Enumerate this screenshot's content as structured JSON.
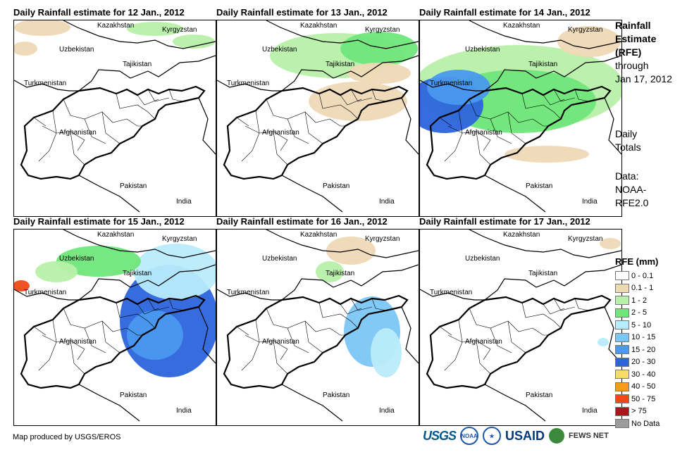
{
  "panels": [
    {
      "title": "Daily Rainfall estimate for 12 Jan., 2012",
      "day": 12
    },
    {
      "title": "Daily Rainfall estimate for 13 Jan., 2012",
      "day": 13
    },
    {
      "title": "Daily Rainfall estimate for 14 Jan., 2012",
      "day": 14
    },
    {
      "title": "Daily Rainfall estimate for 15 Jan., 2012",
      "day": 15
    },
    {
      "title": "Daily Rainfall estimate for 16 Jan., 2012",
      "day": 16
    },
    {
      "title": "Daily Rainfall estimate for 17 Jan., 2012",
      "day": 17
    }
  ],
  "map_labels": {
    "kazakhstan": "Kazakhstan",
    "kyrgyzstan": "Kyrgyzstan",
    "uzbekistan": "Uzbekistan",
    "tajikistan": "Tajikistan",
    "turkmenistan": "Turkmenistan",
    "afghanistan": "Afghanistan",
    "pakistan": "Pakistan",
    "india": "India"
  },
  "side_text": {
    "title_line1": "Rainfall",
    "title_line2": "Estimate",
    "title_line3": "(RFE)",
    "through": "through",
    "date": "Jan 17, 2012",
    "daily": "Daily",
    "totals": "Totals",
    "data_label": "Data:",
    "source1": "NOAA-",
    "source2": "RFE2.0"
  },
  "legend": {
    "title": "RFE (mm)",
    "items": [
      {
        "label": "0 - 0.1",
        "color": "#ffffff"
      },
      {
        "label": "0.1 - 1",
        "color": "#eed9b5"
      },
      {
        "label": "1 - 2",
        "color": "#b7f0a8"
      },
      {
        "label": "2 - 5",
        "color": "#6fe67a"
      },
      {
        "label": "5 - 10",
        "color": "#b9ecfb"
      },
      {
        "label": "10 - 15",
        "color": "#7cc6f5"
      },
      {
        "label": "15 - 20",
        "color": "#4a99ee"
      },
      {
        "label": "20 - 30",
        "color": "#2c64dd"
      },
      {
        "label": "30 - 40",
        "color": "#f8dc68"
      },
      {
        "label": "40 - 50",
        "color": "#f79a1e"
      },
      {
        "label": "50 - 75",
        "color": "#ef4a16"
      },
      {
        "label": "> 75",
        "color": "#a8171b"
      },
      {
        "label": "No Data",
        "color": "#9c9c9c"
      }
    ]
  },
  "footer": {
    "credit": "Map produced by USGS/EROS",
    "usgs": "USGS",
    "noaa": "NOAA",
    "usaid": "USAID",
    "fews": "FEWS NET"
  },
  "rainfall_fields": {
    "12": [
      {
        "cls": "0.1 - 1",
        "color": "#eed9b5",
        "area": "northern Uzbekistan/Kazakhstan border"
      },
      {
        "cls": "1 - 2",
        "color": "#b7f0a8",
        "area": "Kazakhstan and Kyrgyzstan, north edge"
      }
    ],
    "13": [
      {
        "cls": "1 - 2",
        "color": "#b7f0a8",
        "area": "Uzbekistan, Tajikistan, northeast Afghanistan"
      },
      {
        "cls": "0.1 - 1",
        "color": "#eed9b5",
        "area": "north-central Afghanistan"
      }
    ],
    "14": [
      {
        "cls": "20 - 30",
        "color": "#2c64dd",
        "area": "northwest Afghanistan / Turkmenistan"
      },
      {
        "cls": "2 - 5",
        "color": "#6fe67a",
        "area": "central and northern Afghanistan"
      }
    ],
    "15": [
      {
        "cls": "20 - 30",
        "color": "#2c64dd",
        "area": "eastern Afghanistan / northern Pakistan"
      },
      {
        "cls": "5 - 10",
        "color": "#b9ecfb",
        "area": "Tajikistan and Kyrgyzstan"
      }
    ],
    "16": [
      {
        "cls": "10 - 15",
        "color": "#7cc6f5",
        "area": "eastern Afghanistan border"
      },
      {
        "cls": "0.1 - 1",
        "color": "#eed9b5",
        "area": "northern Tajikistan"
      }
    ],
    "17": [
      {
        "cls": "0.1 - 1",
        "color": "#eed9b5",
        "area": "far northeast Kyrgyzstan"
      }
    ]
  }
}
